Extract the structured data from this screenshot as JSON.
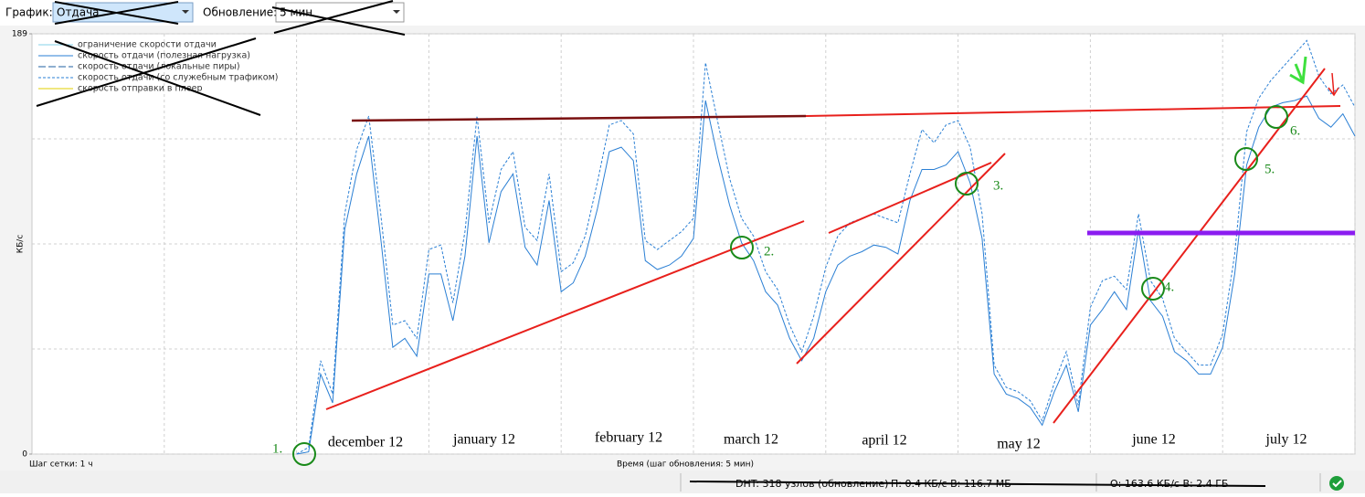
{
  "toolbar": {
    "graph_label": "График:",
    "graph_value": "Отдача",
    "update_label": "Обновление:",
    "update_value": "5 мин"
  },
  "chart_data": {
    "type": "line",
    "y_label": "КБ/с",
    "x_label": "Время (шаг обновления: 5 мин)",
    "grid_note": "Шаг сетки: 1 ч",
    "ylim": [
      0,
      189
    ],
    "yticks": [
      0,
      189
    ],
    "ygrid": [
      0,
      47.25,
      94.5,
      141.75,
      189
    ],
    "x_grid_every": 11,
    "grid": true,
    "series": [
      {
        "name": "ограничение скорости отдачи",
        "color": "#86d3ea",
        "dash": "none"
      },
      {
        "name": "скорость отдачи (полезная нагрузка)",
        "color": "#2a7fd4",
        "dash": "none",
        "values": [
          null,
          null,
          null,
          null,
          null,
          null,
          null,
          null,
          null,
          null,
          null,
          null,
          null,
          null,
          null,
          null,
          null,
          null,
          null,
          null,
          null,
          null,
          0,
          1,
          36,
          23,
          101,
          126,
          143,
          97,
          48,
          52,
          44,
          81,
          81,
          60,
          89,
          143,
          95,
          118,
          126,
          93,
          85,
          114,
          73,
          77,
          89,
          110,
          136,
          138,
          132,
          87,
          83,
          85,
          89,
          97,
          159,
          134,
          112,
          95,
          87,
          73,
          67,
          52,
          42,
          52,
          73,
          85,
          89,
          91,
          94,
          93,
          90,
          114,
          128,
          128,
          130,
          136,
          122,
          97,
          36,
          27,
          25,
          21,
          13,
          28,
          40,
          19,
          58,
          65,
          73,
          65,
          101,
          69,
          62,
          46,
          42,
          36,
          36,
          48,
          81,
          130,
          147,
          156,
          158,
          159,
          161,
          151,
          147,
          153,
          143
        ]
      },
      {
        "name": "скорость отдачи (локальные пиры)",
        "color": "#1f5fa0",
        "dash": "8 3"
      },
      {
        "name": "скорость отдачи (со служебным трафиком)",
        "color": "#2a7fd4",
        "dash": "3 2",
        "values": [
          null,
          null,
          null,
          null,
          null,
          null,
          null,
          null,
          null,
          null,
          null,
          null,
          null,
          null,
          null,
          null,
          null,
          null,
          null,
          null,
          null,
          null,
          0,
          3,
          42,
          27,
          108,
          137,
          152,
          108,
          58,
          60,
          52,
          92,
          94,
          68,
          100,
          152,
          104,
          128,
          136,
          102,
          96,
          126,
          82,
          86,
          98,
          122,
          148,
          150,
          144,
          96,
          92,
          96,
          100,
          106,
          176,
          150,
          124,
          106,
          98,
          82,
          74,
          58,
          46,
          62,
          84,
          98,
          104,
          106,
          108,
          106,
          104,
          126,
          146,
          140,
          148,
          150,
          138,
          108,
          40,
          30,
          28,
          24,
          15,
          32,
          46,
          22,
          66,
          78,
          80,
          74,
          108,
          78,
          70,
          52,
          46,
          40,
          40,
          54,
          90,
          145,
          160,
          168,
          174,
          180,
          186,
          170,
          162,
          166,
          156
        ]
      },
      {
        "name": "скорость отправки в плеер",
        "color": "#e0cf00",
        "dash": "none"
      }
    ]
  },
  "annotations": {
    "months": [
      "december 12",
      "january 12",
      "february 12",
      "march 12",
      "april 12",
      "may 12",
      "june 12",
      "july 12"
    ],
    "markers": [
      "1.",
      "2.",
      "3.",
      "4.",
      "5.",
      "6."
    ]
  },
  "statusbar": {
    "dht": "DHT: 318 узлов (обновление)",
    "download": "П: 0.4 КБ/с В: 116.7 МБ",
    "upload": "О: 163.6 КБ/с В: 2.4 ГБ"
  }
}
